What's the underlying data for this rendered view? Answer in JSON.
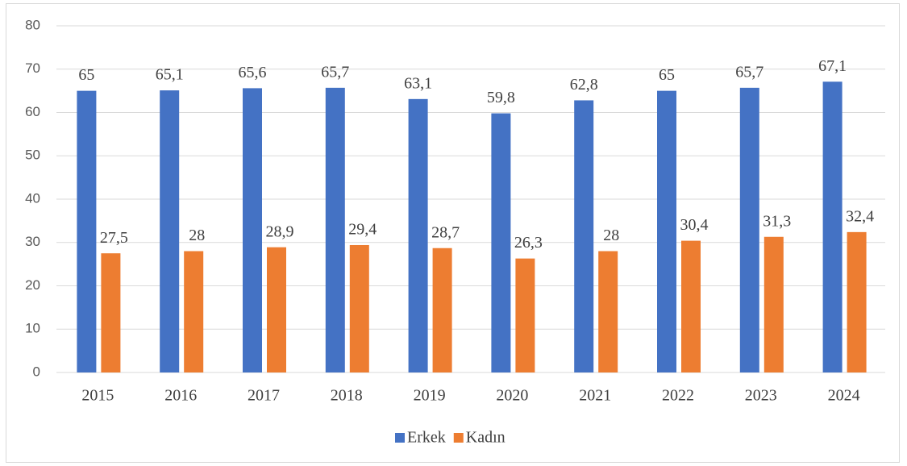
{
  "chart_data": {
    "type": "bar",
    "categories": [
      "2015",
      "2016",
      "2017",
      "2018",
      "2019",
      "2020",
      "2021",
      "2022",
      "2023",
      "2024"
    ],
    "series": [
      {
        "name": "Erkek",
        "color": "#4472c4",
        "values": [
          65,
          65.1,
          65.6,
          65.7,
          63.1,
          59.8,
          62.8,
          65,
          65.7,
          67.1
        ],
        "value_labels": [
          "65",
          "65,1",
          "65,6",
          "65,7",
          "63,1",
          "59,8",
          "62,8",
          "65",
          "65,7",
          "67,1"
        ]
      },
      {
        "name": "Kadın",
        "color": "#ed7d31",
        "values": [
          27.5,
          28,
          28.9,
          29.4,
          28.7,
          26.3,
          28,
          30.4,
          31.3,
          32.4
        ],
        "value_labels": [
          "27,5",
          "28",
          "28,9",
          "29,4",
          "28,7",
          "26,3",
          "28",
          "30,4",
          "31,3",
          "32,4"
        ]
      }
    ],
    "ylim": [
      0,
      80
    ],
    "yticks": [
      0,
      10,
      20,
      30,
      40,
      50,
      60,
      70,
      80
    ],
    "grid": true,
    "legend": "bottom"
  }
}
